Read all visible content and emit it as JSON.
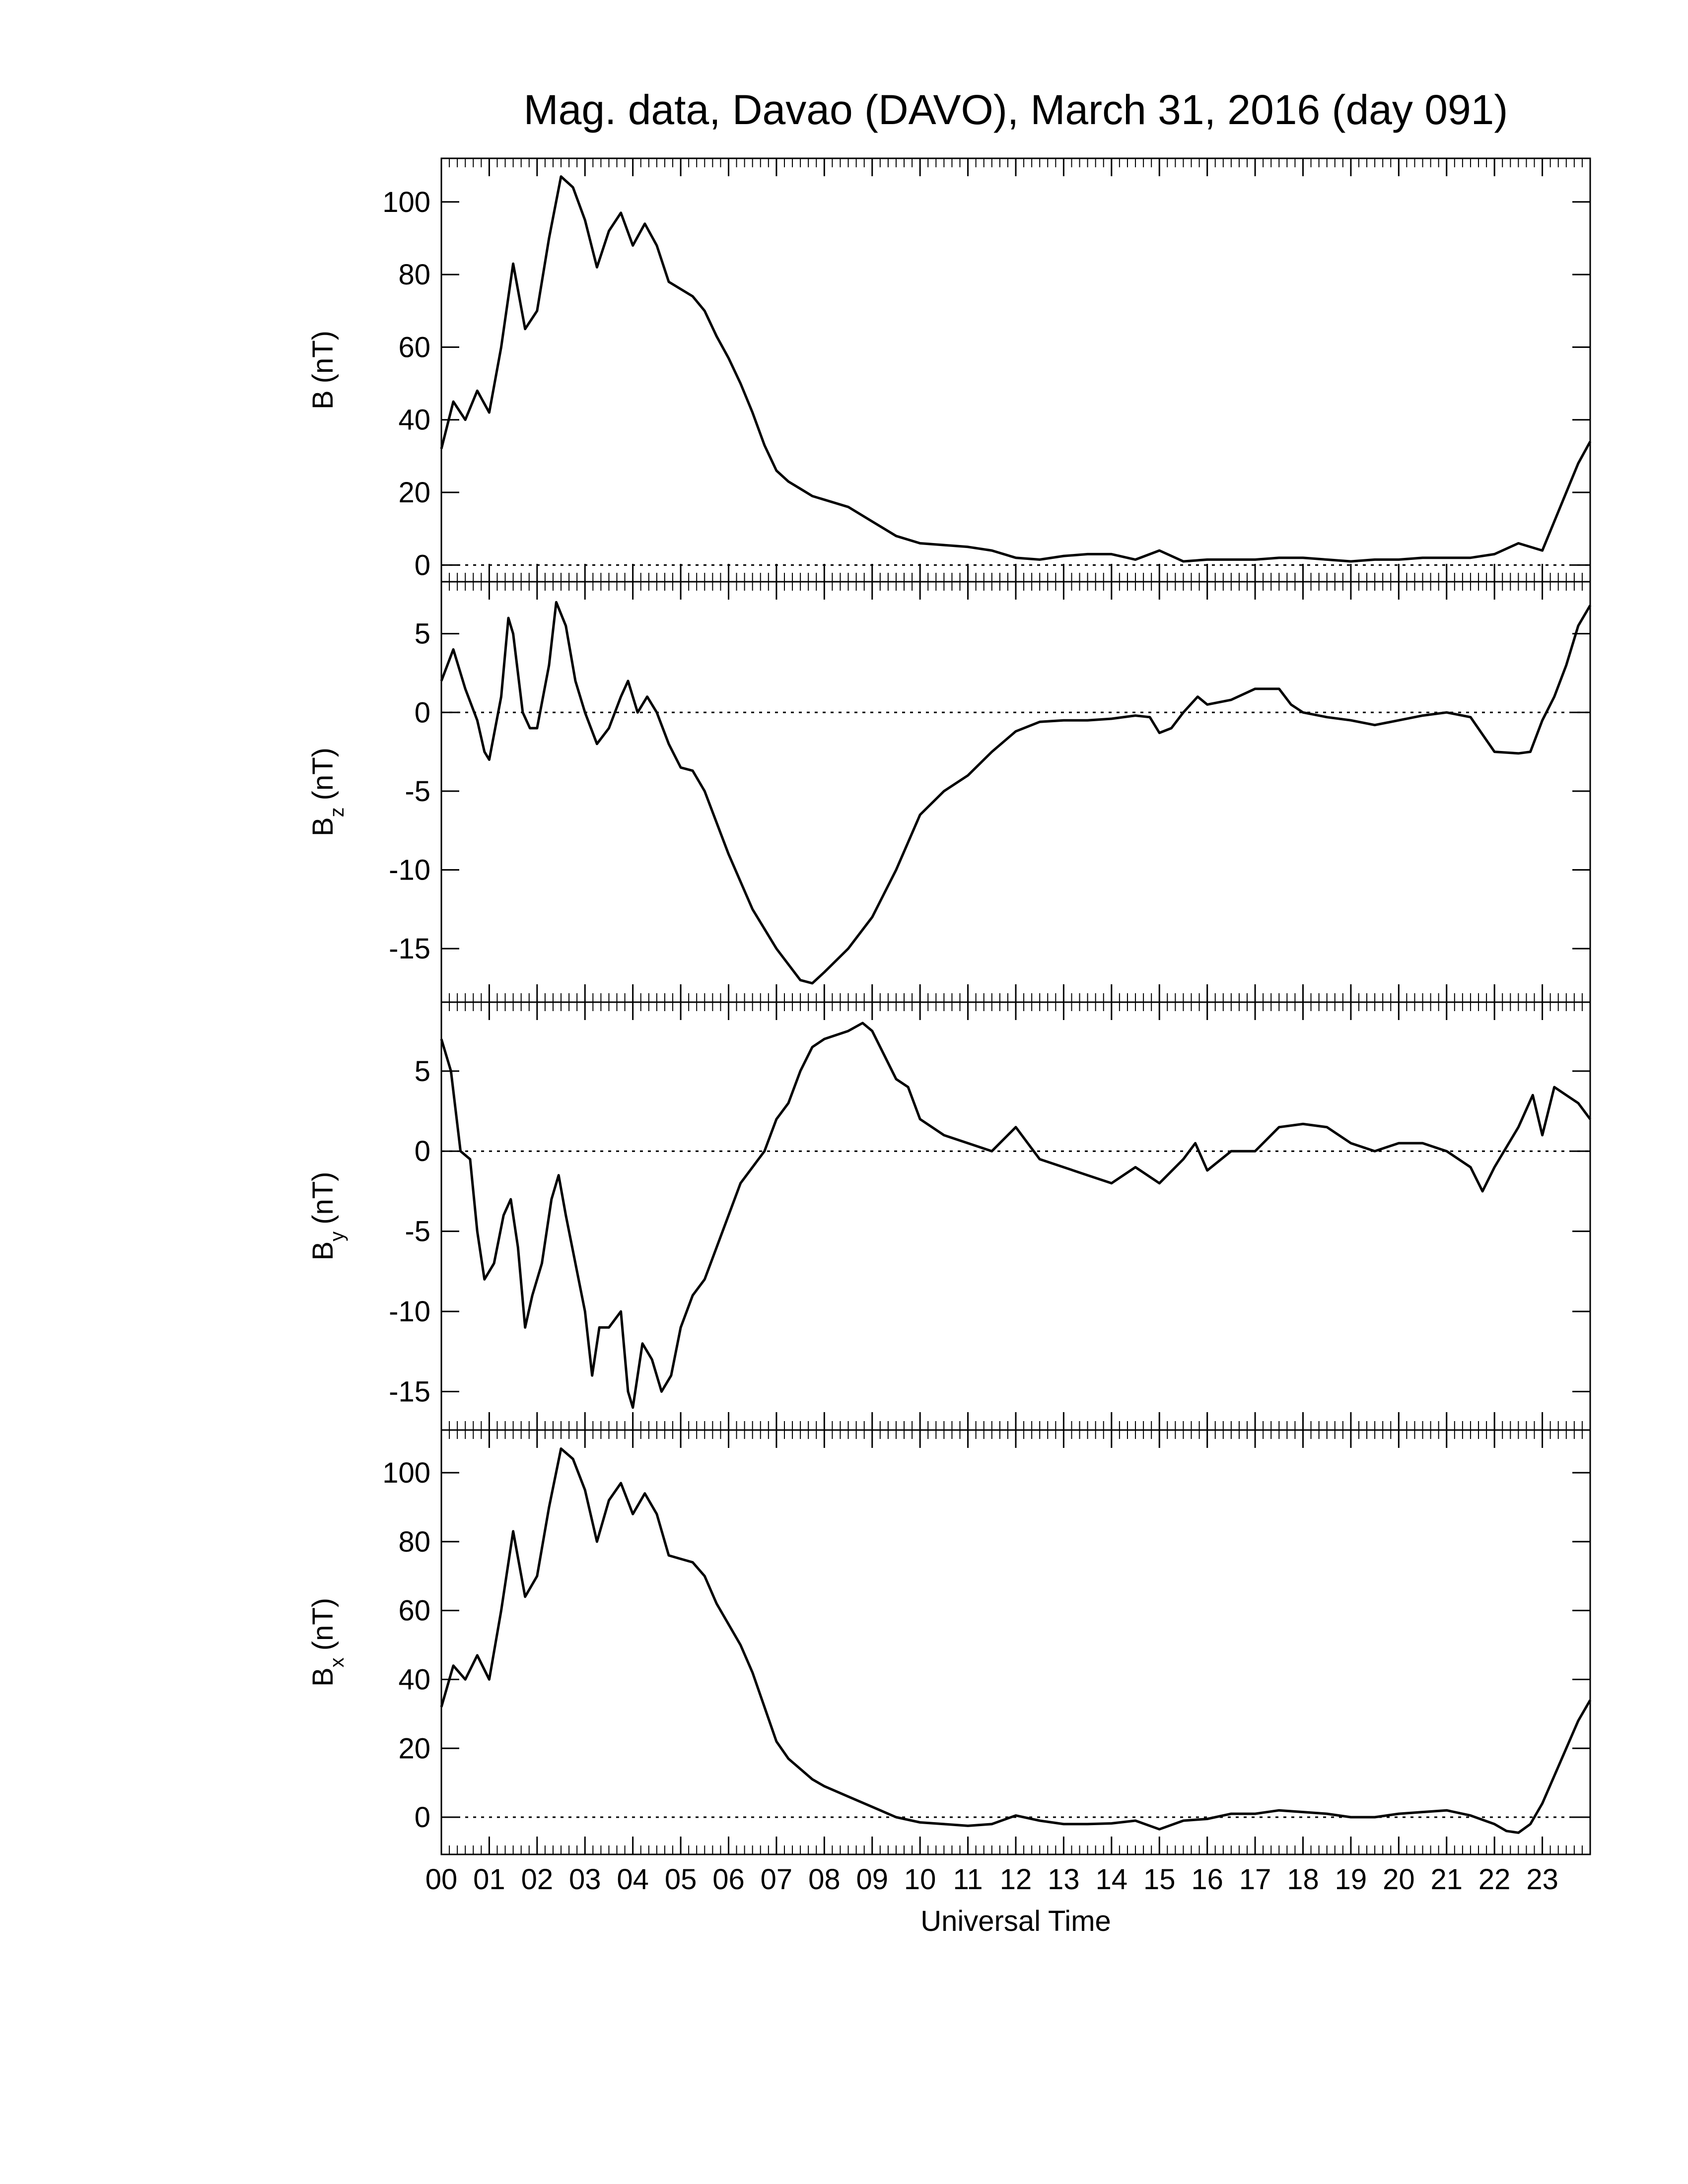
{
  "chart_data": [
    {
      "type": "line",
      "title": "Mag. data, Davao (DAVO), March 31, 2016 (day 091)",
      "ylabel": {
        "main": "B",
        "unit": "(nT)"
      },
      "color": "#000000",
      "zero_line": true,
      "x_minor": 6,
      "xlim": [
        0,
        24
      ],
      "xticks": [
        0,
        1,
        2,
        3,
        4,
        5,
        6,
        7,
        8,
        9,
        10,
        11,
        12,
        13,
        14,
        15,
        16,
        17,
        18,
        19,
        20,
        21,
        22,
        23
      ],
      "ylim": [
        -4.6,
        112
      ],
      "yticks": [
        0,
        20,
        40,
        60,
        80,
        100
      ],
      "x": [
        0,
        0.25,
        0.5,
        0.75,
        1,
        1.25,
        1.5,
        1.75,
        2,
        2.25,
        2.5,
        2.75,
        3,
        3.25,
        3.5,
        3.75,
        4,
        4.25,
        4.5,
        4.75,
        5,
        5.25,
        5.5,
        5.75,
        6,
        6.25,
        6.5,
        6.75,
        7,
        7.25,
        7.5,
        7.75,
        8,
        8.5,
        9,
        9.5,
        10,
        10.5,
        11,
        11.5,
        12,
        12.5,
        13,
        13.5,
        14,
        14.5,
        15,
        15.5,
        16,
        16.5,
        17,
        17.5,
        18,
        18.5,
        19,
        19.5,
        20,
        20.5,
        21,
        21.5,
        22,
        22.5,
        23,
        23.25,
        23.5,
        23.75,
        24
      ],
      "values": [
        32,
        45,
        40,
        48,
        42,
        60,
        83,
        65,
        70,
        90,
        107,
        104,
        95,
        82,
        92,
        97,
        88,
        94,
        88,
        78,
        76,
        74,
        70,
        63,
        57,
        50,
        42,
        33,
        26,
        23,
        21,
        19,
        18,
        16,
        12,
        8,
        6,
        5.5,
        5,
        4,
        2,
        1.5,
        2.5,
        3,
        3,
        1.5,
        4,
        1,
        1.5,
        1.5,
        1.5,
        2,
        2,
        1.5,
        1,
        1.5,
        1.5,
        2,
        2,
        2,
        3,
        6,
        4,
        12,
        20,
        28,
        34
      ]
    },
    {
      "type": "line",
      "ylabel": {
        "main": "B",
        "sub": "z",
        "unit": "(nT)"
      },
      "color": "#000000",
      "zero_line": true,
      "x_minor": 6,
      "xlim": [
        0,
        24
      ],
      "xticks": [
        0,
        1,
        2,
        3,
        4,
        5,
        6,
        7,
        8,
        9,
        10,
        11,
        12,
        13,
        14,
        15,
        16,
        17,
        18,
        19,
        20,
        21,
        22,
        23
      ],
      "ylim": [
        -18.4,
        8.3
      ],
      "yticks": [
        -15,
        -10,
        -5,
        0,
        5
      ],
      "x": [
        0,
        0.25,
        0.5,
        0.75,
        0.9,
        1,
        1.25,
        1.4,
        1.5,
        1.7,
        1.85,
        2,
        2.25,
        2.4,
        2.6,
        2.8,
        3,
        3.25,
        3.5,
        3.75,
        3.9,
        4.1,
        4.3,
        4.5,
        4.75,
        5,
        5.25,
        5.5,
        6,
        6.5,
        7,
        7.5,
        7.75,
        8,
        8.5,
        9,
        9.5,
        10,
        10.5,
        11,
        11.5,
        12,
        12.5,
        13,
        13.5,
        14,
        14.5,
        14.8,
        15,
        15.25,
        15.5,
        15.8,
        16,
        16.5,
        17,
        17.5,
        17.75,
        18,
        18.5,
        19,
        19.5,
        20,
        20.5,
        21,
        21.5,
        22,
        22.5,
        22.75,
        23,
        23.25,
        23.5,
        23.75,
        24
      ],
      "values": [
        2,
        4,
        1.5,
        -0.5,
        -2.5,
        -3,
        1,
        6,
        5,
        0,
        -1,
        -1,
        3,
        7,
        5.5,
        2,
        0,
        -2,
        -1,
        1,
        2,
        0,
        1,
        0,
        -2,
        -3.5,
        -3.7,
        -5,
        -9,
        -12.5,
        -15,
        -17,
        -17.2,
        -16.5,
        -15,
        -13,
        -10,
        -6.5,
        -5,
        -4,
        -2.5,
        -1.2,
        -0.6,
        -0.5,
        -0.5,
        -0.4,
        -0.2,
        -0.3,
        -1.3,
        -1,
        0,
        1,
        0.5,
        0.8,
        1.5,
        1.5,
        0.5,
        0,
        -0.3,
        -0.5,
        -0.8,
        -0.5,
        -0.2,
        0,
        -0.3,
        -2.5,
        -2.6,
        -2.5,
        -0.5,
        1,
        3,
        5.5,
        6.8
      ]
    },
    {
      "type": "line",
      "ylabel": {
        "main": "B",
        "sub": "y",
        "unit": "(nT)"
      },
      "color": "#000000",
      "zero_line": true,
      "x_minor": 6,
      "xlim": [
        0,
        24
      ],
      "xticks": [
        0,
        1,
        2,
        3,
        4,
        5,
        6,
        7,
        8,
        9,
        10,
        11,
        12,
        13,
        14,
        15,
        16,
        17,
        18,
        19,
        20,
        21,
        22,
        23
      ],
      "ylim": [
        -17.4,
        9.3
      ],
      "yticks": [
        -15,
        -10,
        -5,
        0,
        5
      ],
      "x": [
        0,
        0.2,
        0.4,
        0.6,
        0.75,
        0.9,
        1.1,
        1.3,
        1.45,
        1.6,
        1.75,
        1.9,
        2.1,
        2.3,
        2.45,
        2.6,
        2.8,
        3,
        3.15,
        3.3,
        3.5,
        3.75,
        3.9,
        4,
        4.2,
        4.4,
        4.6,
        4.8,
        5,
        5.25,
        5.5,
        5.75,
        6,
        6.25,
        6.5,
        6.75,
        7,
        7.25,
        7.5,
        7.75,
        8,
        8.5,
        8.8,
        9,
        9.25,
        9.5,
        9.75,
        10,
        10.5,
        11,
        11.5,
        12,
        12.25,
        12.5,
        13,
        13.5,
        14,
        14.5,
        15,
        15.5,
        15.75,
        16,
        16.5,
        17,
        17.5,
        18,
        18.5,
        19,
        19.5,
        20,
        20.5,
        21,
        21.5,
        21.75,
        22,
        22.5,
        22.8,
        23,
        23.25,
        23.5,
        23.75,
        24
      ],
      "values": [
        7,
        5,
        0,
        -0.5,
        -5,
        -8,
        -7,
        -4,
        -3,
        -6,
        -11,
        -9,
        -7,
        -3,
        -1.5,
        -4,
        -7,
        -10,
        -14,
        -11,
        -11,
        -10,
        -15,
        -16,
        -12,
        -13,
        -15,
        -14,
        -11,
        -9,
        -8,
        -6,
        -4,
        -2,
        -1,
        0,
        2,
        3,
        5,
        6.5,
        7,
        7.5,
        8,
        7.5,
        6,
        4.5,
        4,
        2,
        1,
        0.5,
        0,
        1.5,
        0.5,
        -0.5,
        -1,
        -1.5,
        -2,
        -1,
        -2,
        -0.5,
        0.5,
        -1.2,
        0,
        0,
        1.5,
        1.7,
        1.5,
        0.5,
        0,
        0.5,
        0.5,
        0,
        -1,
        -2.5,
        -1,
        1.5,
        3.5,
        1,
        4,
        3.5,
        3,
        2
      ]
    },
    {
      "type": "line",
      "ylabel": {
        "main": "B",
        "sub": "x",
        "unit": "(nT)"
      },
      "xlabel": "Universal Time",
      "color": "#000000",
      "zero_line": true,
      "x_minor": 6,
      "xlim": [
        0,
        24
      ],
      "xticks": [
        {
          "value": 0,
          "label": "00"
        },
        {
          "value": 1,
          "label": "01"
        },
        {
          "value": 2,
          "label": "02"
        },
        {
          "value": 3,
          "label": "03"
        },
        {
          "value": 4,
          "label": "04"
        },
        {
          "value": 5,
          "label": "05"
        },
        {
          "value": 6,
          "label": "06"
        },
        {
          "value": 7,
          "label": "07"
        },
        {
          "value": 8,
          "label": "08"
        },
        {
          "value": 9,
          "label": "09"
        },
        {
          "value": 10,
          "label": "10"
        },
        {
          "value": 11,
          "label": "11"
        },
        {
          "value": 12,
          "label": "12"
        },
        {
          "value": 13,
          "label": "13"
        },
        {
          "value": 14,
          "label": "14"
        },
        {
          "value": 15,
          "label": "15"
        },
        {
          "value": 16,
          "label": "16"
        },
        {
          "value": 17,
          "label": "17"
        },
        {
          "value": 18,
          "label": "18"
        },
        {
          "value": 19,
          "label": "19"
        },
        {
          "value": 20,
          "label": "20"
        },
        {
          "value": 21,
          "label": "21"
        },
        {
          "value": 22,
          "label": "22"
        },
        {
          "value": 23,
          "label": "23"
        }
      ],
      "ylim": [
        -10.8,
        112.4
      ],
      "yticks": [
        0,
        20,
        40,
        60,
        80,
        100
      ],
      "x": [
        0,
        0.25,
        0.5,
        0.75,
        1,
        1.25,
        1.5,
        1.75,
        2,
        2.25,
        2.5,
        2.75,
        3,
        3.25,
        3.5,
        3.75,
        4,
        4.25,
        4.5,
        4.75,
        5,
        5.25,
        5.5,
        5.75,
        6,
        6.25,
        6.5,
        6.75,
        7,
        7.25,
        7.5,
        7.75,
        8,
        8.5,
        9,
        9.5,
        10,
        10.5,
        11,
        11.5,
        12,
        12.5,
        13,
        13.5,
        14,
        14.5,
        15,
        15.5,
        16,
        16.5,
        17,
        17.5,
        18,
        18.5,
        19,
        19.5,
        20,
        20.5,
        21,
        21.5,
        22,
        22.25,
        22.5,
        22.75,
        23,
        23.25,
        23.5,
        23.75,
        24
      ],
      "values": [
        32,
        44,
        40,
        47,
        40,
        60,
        83,
        64,
        70,
        90,
        107,
        104,
        95,
        80,
        92,
        97,
        88,
        94,
        88,
        76,
        75,
        74,
        70,
        62,
        56,
        50,
        42,
        32,
        22,
        17,
        14,
        11,
        9,
        6,
        3,
        0,
        -1.5,
        -2,
        -2.5,
        -2,
        0.5,
        -1,
        -2,
        -2,
        -1.8,
        -1,
        -3.5,
        -1,
        -0.5,
        1,
        1,
        2,
        1.5,
        1,
        0,
        0,
        1,
        1.5,
        2,
        0.5,
        -2,
        -4,
        -4.5,
        -2,
        4,
        12,
        20,
        28,
        34
      ]
    }
  ]
}
